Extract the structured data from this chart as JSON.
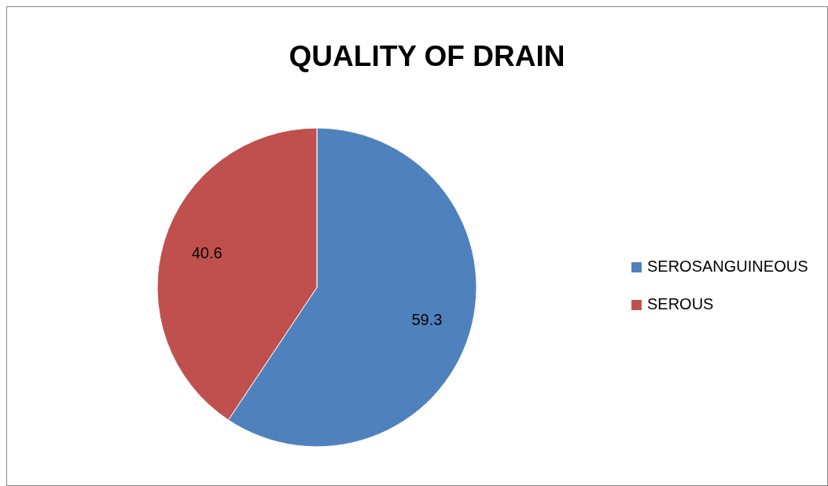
{
  "chart_data": {
    "type": "pie",
    "title": "QUALITY OF DRAIN",
    "categories": [
      "SEROSANGUINEOUS",
      "SEROUS"
    ],
    "values": [
      59.3,
      40.6
    ],
    "colors": [
      "#4f81bd",
      "#c0504d"
    ],
    "data_labels": true,
    "legend": "right"
  }
}
